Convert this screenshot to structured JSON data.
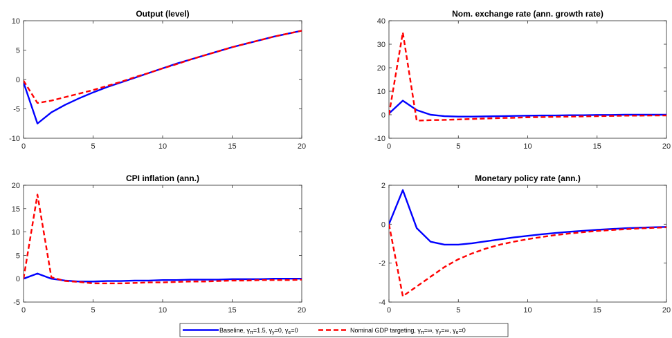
{
  "chart_data": [
    {
      "type": "line",
      "title": "Output (level)",
      "xlim": [
        0,
        20
      ],
      "ylim": [
        -10,
        10
      ],
      "xticks": [
        0,
        5,
        10,
        15,
        20
      ],
      "yticks": [
        -10,
        -5,
        0,
        5,
        10
      ],
      "x": [
        0,
        1,
        2,
        3,
        4,
        5,
        6,
        7,
        8,
        9,
        10,
        11,
        12,
        13,
        14,
        15,
        16,
        17,
        18,
        19,
        20
      ],
      "series": [
        {
          "key": "baseline",
          "values": [
            -0.5,
            -7.5,
            -5.6,
            -4.3,
            -3.2,
            -2.2,
            -1.3,
            -0.5,
            0.3,
            1.1,
            1.9,
            2.7,
            3.4,
            4.1,
            4.8,
            5.5,
            6.1,
            6.7,
            7.3,
            7.8,
            8.3
          ]
        },
        {
          "key": "ngdp",
          "values": [
            -0.2,
            -4.0,
            -3.6,
            -3.0,
            -2.4,
            -1.8,
            -1.1,
            -0.4,
            0.4,
            1.1,
            1.9,
            2.6,
            3.4,
            4.1,
            4.8,
            5.5,
            6.1,
            6.7,
            7.3,
            7.8,
            8.3
          ]
        }
      ]
    },
    {
      "type": "line",
      "title": "Nom. exchange rate (ann. growth rate)",
      "xlim": [
        0,
        20
      ],
      "ylim": [
        -10,
        40
      ],
      "xticks": [
        0,
        5,
        10,
        15,
        20
      ],
      "yticks": [
        -10,
        0,
        10,
        20,
        30,
        40
      ],
      "x": [
        0,
        1,
        2,
        3,
        4,
        5,
        6,
        7,
        8,
        9,
        10,
        11,
        12,
        13,
        14,
        15,
        16,
        17,
        18,
        19,
        20
      ],
      "series": [
        {
          "key": "baseline",
          "values": [
            0.5,
            6.0,
            2.0,
            0.0,
            -0.6,
            -0.8,
            -0.8,
            -0.7,
            -0.6,
            -0.5,
            -0.4,
            -0.3,
            -0.3,
            -0.2,
            -0.2,
            -0.1,
            -0.1,
            0.0,
            0.0,
            0.0,
            0.0
          ]
        },
        {
          "key": "ngdp",
          "values": [
            0.0,
            35.0,
            -2.5,
            -2.3,
            -2.2,
            -2.0,
            -1.8,
            -1.6,
            -1.4,
            -1.3,
            -1.1,
            -1.0,
            -0.9,
            -0.8,
            -0.7,
            -0.6,
            -0.5,
            -0.4,
            -0.4,
            -0.3,
            -0.3
          ]
        }
      ]
    },
    {
      "type": "line",
      "title": "CPI inflation (ann.)",
      "xlim": [
        0,
        20
      ],
      "ylim": [
        -5,
        20
      ],
      "xticks": [
        0,
        5,
        10,
        15,
        20
      ],
      "yticks": [
        -5,
        0,
        5,
        10,
        15,
        20
      ],
      "x": [
        0,
        1,
        2,
        3,
        4,
        5,
        6,
        7,
        8,
        9,
        10,
        11,
        12,
        13,
        14,
        15,
        16,
        17,
        18,
        19,
        20
      ],
      "series": [
        {
          "key": "baseline",
          "values": [
            0.0,
            1.1,
            0.0,
            -0.4,
            -0.6,
            -0.6,
            -0.5,
            -0.5,
            -0.4,
            -0.4,
            -0.3,
            -0.3,
            -0.2,
            -0.2,
            -0.2,
            -0.1,
            -0.1,
            -0.1,
            0.0,
            0.0,
            0.0
          ]
        },
        {
          "key": "ngdp",
          "values": [
            0.0,
            18.0,
            0.3,
            -0.5,
            -0.7,
            -1.0,
            -1.0,
            -1.0,
            -0.9,
            -0.8,
            -0.8,
            -0.7,
            -0.6,
            -0.6,
            -0.5,
            -0.4,
            -0.4,
            -0.3,
            -0.3,
            -0.3,
            -0.2
          ]
        }
      ]
    },
    {
      "type": "line",
      "title": "Monetary policy rate (ann.)",
      "xlim": [
        0,
        20
      ],
      "ylim": [
        -4,
        2
      ],
      "xticks": [
        0,
        5,
        10,
        15,
        20
      ],
      "yticks": [
        -4,
        -2,
        0,
        2
      ],
      "x": [
        0,
        1,
        2,
        3,
        4,
        5,
        6,
        7,
        8,
        9,
        10,
        11,
        12,
        13,
        14,
        15,
        16,
        17,
        18,
        19,
        20
      ],
      "series": [
        {
          "key": "baseline",
          "values": [
            0.0,
            1.75,
            -0.2,
            -0.9,
            -1.05,
            -1.05,
            -0.98,
            -0.88,
            -0.78,
            -0.68,
            -0.6,
            -0.52,
            -0.45,
            -0.39,
            -0.34,
            -0.29,
            -0.25,
            -0.21,
            -0.18,
            -0.16,
            -0.14
          ]
        },
        {
          "key": "ngdp",
          "values": [
            0.0,
            -3.7,
            -3.2,
            -2.7,
            -2.2,
            -1.8,
            -1.5,
            -1.25,
            -1.05,
            -0.9,
            -0.77,
            -0.66,
            -0.56,
            -0.48,
            -0.41,
            -0.35,
            -0.3,
            -0.26,
            -0.22,
            -0.19,
            -0.16
          ]
        }
      ]
    }
  ],
  "legend": {
    "entries": [
      {
        "key": "baseline",
        "label": "Baseline, γπ=1.5, γy=0, γe=0",
        "color": "#0000FF",
        "dash": false
      },
      {
        "key": "ngdp",
        "label": "Nominal GDP targeting, γπ=∞, γy=∞, γe=0",
        "color": "#FF0000",
        "dash": true
      }
    ]
  },
  "colors": {
    "baseline": "#0000FF",
    "ngdp": "#FF0000",
    "axis": "#262626"
  }
}
